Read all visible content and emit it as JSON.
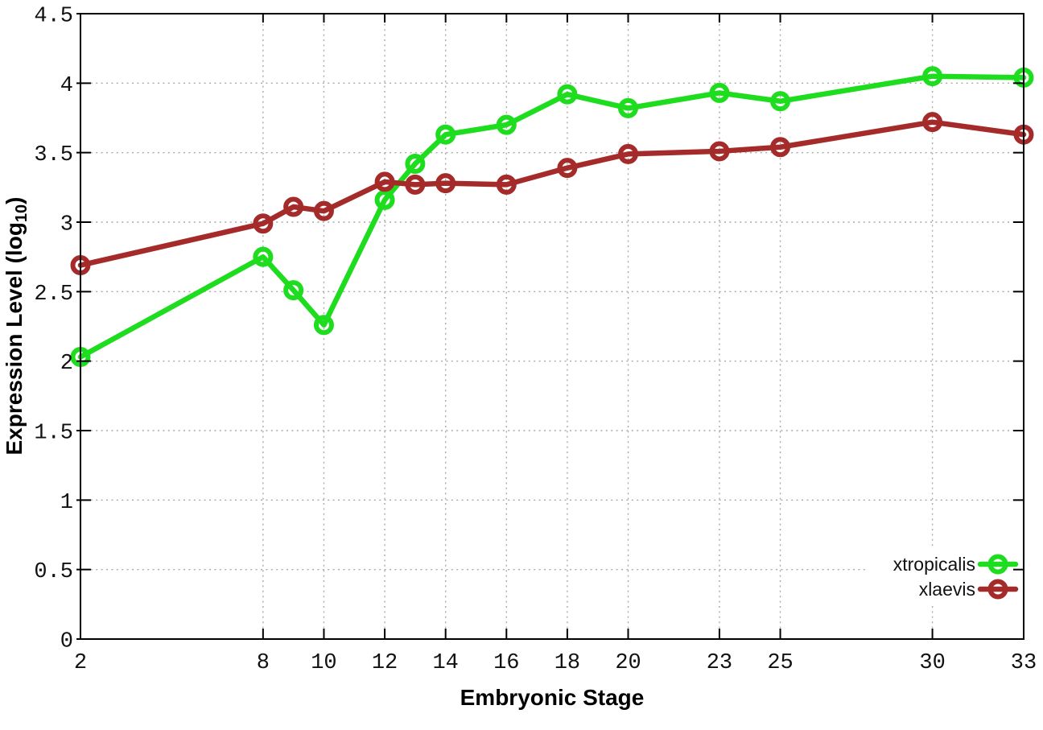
{
  "chart_data": {
    "type": "line",
    "title": "",
    "xlabel": "Embryonic Stage",
    "ylabel": "Expression Level (log10)",
    "ylabel_parts": {
      "prefix": "Expression Level (log",
      "subscript": "10",
      "suffix": ")"
    },
    "xlim": [
      2,
      33
    ],
    "ylim": [
      0,
      4.5
    ],
    "xticks": [
      2,
      8,
      10,
      12,
      14,
      16,
      18,
      20,
      23,
      25,
      30,
      33
    ],
    "yticks": [
      0,
      0.5,
      1,
      1.5,
      2,
      2.5,
      3,
      3.5,
      4,
      4.5
    ],
    "grid": true,
    "grid_style": "dotted",
    "legend_position": "inside-bottom-right",
    "marker": "open-circle",
    "x": [
      2,
      8,
      9,
      10,
      12,
      13,
      14,
      16,
      18,
      20,
      23,
      25,
      30,
      33
    ],
    "series": [
      {
        "name": "xtropicalis",
        "color": "#1edc1e",
        "values": [
          2.03,
          2.75,
          2.51,
          2.26,
          3.16,
          3.42,
          3.63,
          3.7,
          3.92,
          3.82,
          3.93,
          3.87,
          4.05,
          4.04
        ]
      },
      {
        "name": "xlaevis",
        "color": "#a52a2a",
        "values": [
          2.69,
          2.99,
          3.11,
          3.08,
          3.29,
          3.27,
          3.28,
          3.27,
          3.39,
          3.49,
          3.51,
          3.54,
          3.72,
          3.63
        ]
      }
    ],
    "colors": {
      "axis": "#000000",
      "grid": "#a9a9a9",
      "tick_label": "#111111",
      "background": "#ffffff"
    }
  }
}
